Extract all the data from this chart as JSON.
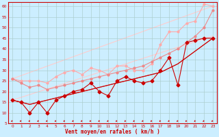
{
  "xlabel": "Vent moyen/en rafales ( km/h )",
  "bg_color": "#cceeff",
  "grid_color": "#aacccc",
  "xlim": [
    -0.5,
    23.5
  ],
  "ylim": [
    5,
    62
  ],
  "yticks": [
    5,
    10,
    15,
    20,
    25,
    30,
    35,
    40,
    45,
    50,
    55,
    60
  ],
  "xticks": [
    0,
    1,
    2,
    3,
    4,
    5,
    6,
    7,
    8,
    9,
    10,
    11,
    12,
    13,
    14,
    15,
    16,
    17,
    18,
    19,
    20,
    21,
    22,
    23
  ],
  "x": [
    0,
    1,
    2,
    3,
    4,
    5,
    6,
    7,
    8,
    9,
    10,
    11,
    12,
    13,
    14,
    15,
    16,
    17,
    18,
    19,
    20,
    21,
    22,
    23
  ],
  "line_dark1_y": [
    16,
    15,
    10,
    15,
    10,
    16,
    18,
    20,
    21,
    24,
    20,
    18,
    25,
    27,
    25,
    24,
    25,
    30,
    36,
    23,
    43,
    44,
    45,
    45
  ],
  "line_dark2_y": [
    16,
    15,
    14,
    15,
    16,
    17,
    18,
    19,
    20,
    21,
    22,
    23,
    24,
    25,
    26,
    27,
    28,
    29,
    31,
    33,
    36,
    39,
    42,
    45
  ],
  "line_dark3_y": [
    16,
    15,
    14,
    15,
    16,
    17,
    18,
    19,
    20,
    21,
    22,
    23,
    24,
    25,
    26,
    27,
    28,
    29,
    31,
    33,
    36,
    39,
    42,
    45
  ],
  "line_pink1_y": [
    26,
    24,
    22,
    23,
    21,
    22,
    23,
    24,
    25,
    26,
    27,
    28,
    29,
    30,
    31,
    32,
    34,
    36,
    38,
    40,
    43,
    46,
    50,
    58
  ],
  "line_pink3_y": [
    26,
    25,
    25,
    25,
    24,
    27,
    29,
    30,
    28,
    31,
    30,
    28,
    32,
    32,
    30,
    30,
    33,
    42,
    48,
    48,
    52,
    53,
    61,
    60
  ],
  "color_dark": "#cc0000",
  "color_med": "#dd4444",
  "color_pink_light": "#ffcccc",
  "color_pink_med": "#ffaaaa",
  "color_pink_dark": "#ee8888",
  "lw": 0.8,
  "marker_size": 2.5
}
